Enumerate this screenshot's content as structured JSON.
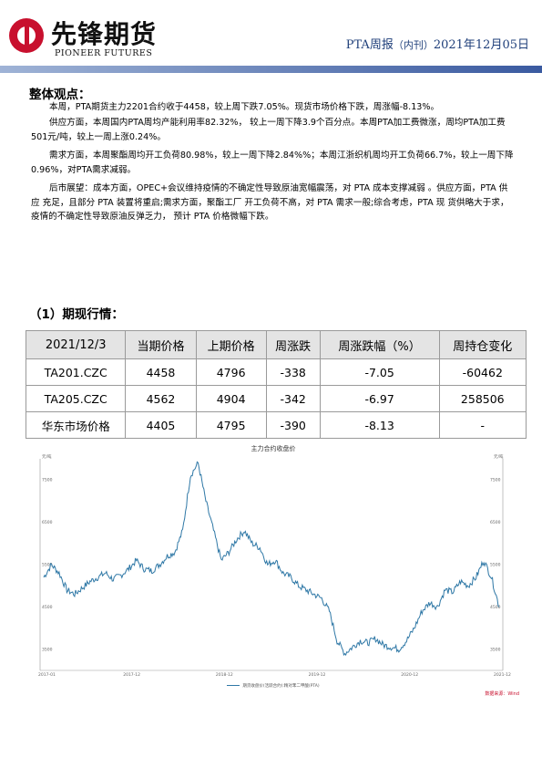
{
  "header": {
    "logo_cn": "先锋期货",
    "logo_en": "PIONEER FUTURES",
    "report_name": "PTA周报",
    "report_type": "（内刊）",
    "report_date": "2021年12月05日"
  },
  "overview": {
    "heading": "整体观点：",
    "paragraphs": [
      "本周，PTA期货主力2201合约收于4458，较上周下跌7.05%。现货市场价格下跌，周涨幅-8.13%。",
      "供应方面，本周国内PTA周均产能利用率82.32%， 较上一周下降3.9个百分点。本周PTA加工费微涨，周均PTA加工费501元/吨，较上一周上涨0.24%。",
      "需求方面，本周聚酯周均开工负荷80.98%，较上一周下降2.84%%；本周江浙织机周均开工负荷66.7%，较上一周下降0.96%，对PTA需求减弱。",
      "后市展望：成本方面，OPEC+会议维持疫情的不确定性导致原油宽幅震荡，对 PTA 成本支撑减弱 。供应方面，PTA 供应 充足，且部分 PTA 装置将重启;需求方面，聚酯工厂 开工负荷不高，对 PTA 需求一般;综合考虑，PTA 现 货供略大于求，疫情的不确定性导致原油反弹乏力， 预计 PTA 价格微幅下跌。"
    ]
  },
  "market": {
    "heading": "（1）期现行情：",
    "columns": [
      "2021/12/3",
      "当期价格",
      "上期价格",
      "周涨跌",
      "周涨跌幅（%）",
      "周持仓变化"
    ],
    "rows": [
      [
        "TA201.CZC",
        "4458",
        "4796",
        "-338",
        "-7.05",
        "-60462"
      ],
      [
        "TA205.CZC",
        "4562",
        "4904",
        "-342",
        "-6.97",
        "258506"
      ],
      [
        "华东市场价格",
        "4405",
        "4795",
        "-390",
        "-8.13",
        "-"
      ]
    ]
  },
  "chart_data": {
    "type": "line",
    "title": "主力合约收盘价",
    "ylabel_left": "元/吨",
    "ylabel_right": "元/吨",
    "x_ticks": [
      "2017-01",
      "2017-12",
      "2018-12",
      "2019-12",
      "2020-12",
      "2021-12"
    ],
    "y_ticks": [
      3500,
      4500,
      5500,
      6500,
      7500
    ],
    "ylim": [
      3000,
      8000
    ],
    "series": [
      {
        "name": "期货收盘价(活跃合约):精对苯二甲酸(PTA)",
        "color": "#2f78a6",
        "x": [
          "2017-01",
          "2017-02",
          "2017-03",
          "2017-04",
          "2017-05",
          "2017-06",
          "2017-07",
          "2017-08",
          "2017-09",
          "2017-10",
          "2017-11",
          "2017-12",
          "2018-01",
          "2018-02",
          "2018-03",
          "2018-04",
          "2018-05",
          "2018-06",
          "2018-07",
          "2018-08",
          "2018-09",
          "2018-10",
          "2018-11",
          "2018-12",
          "2019-01",
          "2019-02",
          "2019-03",
          "2019-04",
          "2019-05",
          "2019-06",
          "2019-07",
          "2019-08",
          "2019-09",
          "2019-10",
          "2019-11",
          "2019-12",
          "2020-01",
          "2020-02",
          "2020-03",
          "2020-04",
          "2020-05",
          "2020-06",
          "2020-07",
          "2020-08",
          "2020-09",
          "2020-10",
          "2020-11",
          "2020-12",
          "2021-01",
          "2021-02",
          "2021-03",
          "2021-04",
          "2021-05",
          "2021-06",
          "2021-07",
          "2021-08",
          "2021-09",
          "2021-10",
          "2021-11",
          "2021-12"
        ],
        "values": [
          5200,
          5500,
          5300,
          4900,
          4800,
          4950,
          5100,
          5200,
          5300,
          5150,
          5250,
          5400,
          5600,
          5400,
          5350,
          5500,
          5700,
          5800,
          6300,
          7600,
          7900,
          7000,
          6300,
          5600,
          5800,
          6100,
          6300,
          6000,
          5900,
          5500,
          5600,
          5300,
          5200,
          5000,
          4900,
          4800,
          4700,
          4400,
          3700,
          3400,
          3550,
          3700,
          3650,
          3750,
          3600,
          3550,
          3500,
          3700,
          4000,
          4400,
          4600,
          4500,
          4900,
          4850,
          5100,
          5000,
          5200,
          5600,
          5200,
          4500
        ]
      }
    ],
    "source": "数据来源：Wind"
  }
}
